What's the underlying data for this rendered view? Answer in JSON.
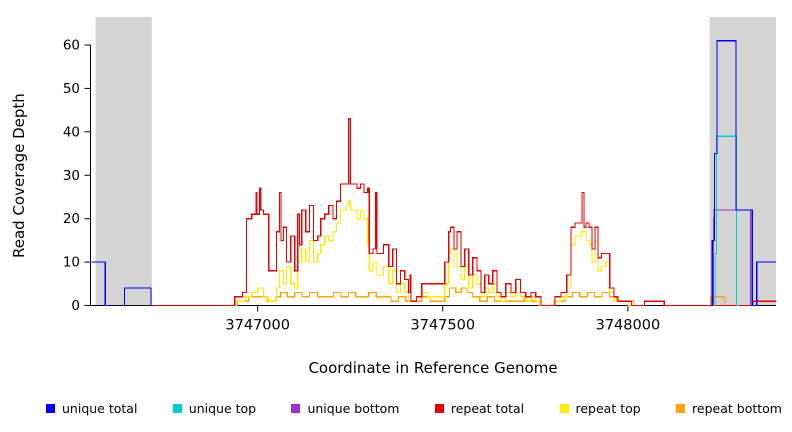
{
  "chart_data": {
    "type": "line",
    "style": "step",
    "title": "",
    "xlabel": "Coordinate in Reference Genome",
    "ylabel": "Read Coverage Depth",
    "xlim": [
      3746551,
      3748400
    ],
    "ylim": [
      0,
      60
    ],
    "xticks": [
      3747000,
      3747500,
      3748000
    ],
    "yticks": [
      0,
      10,
      20,
      30,
      40,
      50,
      60
    ],
    "grid": false,
    "legend_position": "bottom",
    "shaded_regions": [
      {
        "x0": 3746562,
        "x1": 3746714,
        "color": "#d4d4d4"
      },
      {
        "x0": 3748221,
        "x1": 3748400,
        "color": "#d4d4d4"
      }
    ],
    "series": [
      {
        "name": "unique total",
        "color": "#0000ee",
        "segments": [
          [
            [
              3746551,
              10
            ],
            [
              3746588,
              0
            ],
            [
              3746600,
              0
            ]
          ],
          [
            [
              3746636,
              0
            ],
            [
              3746640,
              4
            ],
            [
              3746712,
              0
            ],
            [
              3746718,
              0
            ]
          ],
          [
            [
              3748226,
              0
            ],
            [
              3748228,
              15
            ],
            [
              3748234,
              35
            ],
            [
              3748241,
              61
            ],
            [
              3748292,
              22
            ],
            [
              3748336,
              0
            ],
            [
              3748348,
              10
            ],
            [
              3748400,
              10
            ]
          ]
        ]
      },
      {
        "name": "unique top",
        "color": "#00cdcd",
        "segments": [
          [
            [
              3748233,
              0
            ],
            [
              3748235,
              12
            ],
            [
              3748239,
              39
            ],
            [
              3748293,
              0
            ],
            [
              3748300,
              0
            ]
          ]
        ]
      },
      {
        "name": "unique bottom",
        "color": "#9932cc",
        "segments": [
          [
            [
              3748229,
              0
            ],
            [
              3748231,
              20
            ],
            [
              3748233,
              22
            ],
            [
              3748331,
              0
            ],
            [
              3748338,
              0
            ]
          ]
        ]
      },
      {
        "name": "repeat total",
        "color": "#e60000",
        "segments": [
          [
            [
              3746715,
              0
            ],
            [
              3746938,
              2
            ],
            [
              3746959,
              3
            ],
            [
              3746970,
              20
            ],
            [
              3746984,
              21
            ],
            [
              3746995,
              26
            ],
            [
              3746998,
              21
            ],
            [
              3747005,
              27
            ],
            [
              3747008,
              22
            ],
            [
              3747016,
              21
            ],
            [
              3747030,
              8
            ],
            [
              3747051,
              17
            ],
            [
              3747059,
              26
            ],
            [
              3747063,
              15
            ],
            [
              3747070,
              18
            ],
            [
              3747078,
              10
            ],
            [
              3747089,
              16
            ],
            [
              3747100,
              8
            ],
            [
              3747108,
              21
            ],
            [
              3747113,
              14
            ],
            [
              3747119,
              22
            ],
            [
              3747130,
              17
            ],
            [
              3747140,
              23
            ],
            [
              3747151,
              15
            ],
            [
              3747162,
              16
            ],
            [
              3747170,
              20
            ],
            [
              3747181,
              21
            ],
            [
              3747192,
              23
            ],
            [
              3747203,
              20
            ],
            [
              3747213,
              24
            ],
            [
              3747224,
              28
            ],
            [
              3747246,
              43
            ],
            [
              3747251,
              28
            ],
            [
              3747268,
              27
            ],
            [
              3747278,
              28
            ],
            [
              3747287,
              26
            ],
            [
              3747297,
              27
            ],
            [
              3747301,
              12
            ],
            [
              3747311,
              13
            ],
            [
              3747319,
              26
            ],
            [
              3747322,
              12
            ],
            [
              3747340,
              14
            ],
            [
              3747354,
              9
            ],
            [
              3747365,
              13
            ],
            [
              3747375,
              5
            ],
            [
              3747386,
              8
            ],
            [
              3747397,
              6
            ],
            [
              3747407,
              3
            ],
            [
              3747411,
              7
            ],
            [
              3747414,
              1
            ],
            [
              3747429,
              2
            ],
            [
              3747443,
              5
            ],
            [
              3747505,
              10
            ],
            [
              3747516,
              17
            ],
            [
              3747521,
              18
            ],
            [
              3747530,
              13
            ],
            [
              3747538,
              17
            ],
            [
              3747549,
              9
            ],
            [
              3747559,
              13
            ],
            [
              3747570,
              7
            ],
            [
              3747581,
              11
            ],
            [
              3747592,
              8
            ],
            [
              3747603,
              3
            ],
            [
              3747613,
              7
            ],
            [
              3747624,
              5
            ],
            [
              3747635,
              8
            ],
            [
              3747646,
              3
            ],
            [
              3747657,
              2
            ],
            [
              3747670,
              5
            ],
            [
              3747684,
              3
            ],
            [
              3747697,
              6
            ],
            [
              3747710,
              3
            ],
            [
              3747724,
              2
            ],
            [
              3747738,
              3
            ],
            [
              3747751,
              2
            ],
            [
              3747765,
              0
            ],
            [
              3747803,
              2
            ],
            [
              3747819,
              3
            ],
            [
              3747835,
              7
            ],
            [
              3747846,
              18
            ],
            [
              3747857,
              19
            ],
            [
              3747876,
              26
            ],
            [
              3747881,
              18
            ],
            [
              3747887,
              19
            ],
            [
              3747895,
              18
            ],
            [
              3747903,
              13
            ],
            [
              3747911,
              18
            ],
            [
              3747919,
              11
            ],
            [
              3747929,
              12
            ],
            [
              3747940,
              12
            ],
            [
              3747951,
              4
            ],
            [
              3747962,
              2
            ],
            [
              3747973,
              1
            ],
            [
              3748010,
              0
            ],
            [
              3748045,
              1
            ],
            [
              3748098,
              0
            ],
            [
              3748338,
              1
            ],
            [
              3748400,
              1
            ]
          ]
        ]
      },
      {
        "name": "repeat top",
        "color": "#ffeb00",
        "segments": [
          [
            [
              3746930,
              0
            ],
            [
              3746940,
              1
            ],
            [
              3746965,
              2
            ],
            [
              3746984,
              3
            ],
            [
              3747000,
              4
            ],
            [
              3747016,
              2
            ],
            [
              3747030,
              1
            ],
            [
              3747051,
              4
            ],
            [
              3747059,
              8
            ],
            [
              3747070,
              5
            ],
            [
              3747078,
              9
            ],
            [
              3747089,
              5
            ],
            [
              3747100,
              4
            ],
            [
              3747108,
              10
            ],
            [
              3747119,
              13
            ],
            [
              3747130,
              10
            ],
            [
              3747140,
              15
            ],
            [
              3747151,
              10
            ],
            [
              3747162,
              12
            ],
            [
              3747170,
              14
            ],
            [
              3747181,
              16
            ],
            [
              3747192,
              15
            ],
            [
              3747203,
              17
            ],
            [
              3747213,
              19
            ],
            [
              3747224,
              22
            ],
            [
              3747240,
              23
            ],
            [
              3747246,
              24
            ],
            [
              3747251,
              22
            ],
            [
              3747268,
              20
            ],
            [
              3747278,
              22
            ],
            [
              3747287,
              20
            ],
            [
              3747297,
              14
            ],
            [
              3747301,
              8
            ],
            [
              3747311,
              10
            ],
            [
              3747322,
              7
            ],
            [
              3747340,
              9
            ],
            [
              3747354,
              5
            ],
            [
              3747365,
              8
            ],
            [
              3747375,
              3
            ],
            [
              3747386,
              5
            ],
            [
              3747397,
              3
            ],
            [
              3747407,
              1
            ],
            [
              3747429,
              2
            ],
            [
              3747443,
              3
            ],
            [
              3747460,
              2
            ],
            [
              3747505,
              5
            ],
            [
              3747516,
              12
            ],
            [
              3747521,
              13
            ],
            [
              3747530,
              9
            ],
            [
              3747538,
              12
            ],
            [
              3747549,
              6
            ],
            [
              3747559,
              9
            ],
            [
              3747570,
              4
            ],
            [
              3747581,
              7
            ],
            [
              3747592,
              5
            ],
            [
              3747603,
              2
            ],
            [
              3747613,
              4
            ],
            [
              3747624,
              3
            ],
            [
              3747635,
              5
            ],
            [
              3747646,
              2
            ],
            [
              3747657,
              1
            ],
            [
              3747670,
              3
            ],
            [
              3747684,
              2
            ],
            [
              3747697,
              4
            ],
            [
              3747710,
              2
            ],
            [
              3747724,
              1
            ],
            [
              3747738,
              2
            ],
            [
              3747751,
              1
            ],
            [
              3747765,
              0
            ],
            [
              3747803,
              1
            ],
            [
              3747819,
              2
            ],
            [
              3747835,
              4
            ],
            [
              3747846,
              14
            ],
            [
              3747857,
              16
            ],
            [
              3747876,
              17
            ],
            [
              3747887,
              15
            ],
            [
              3747895,
              14
            ],
            [
              3747903,
              10
            ],
            [
              3747911,
              15
            ],
            [
              3747919,
              8
            ],
            [
              3747929,
              9
            ],
            [
              3747940,
              10
            ],
            [
              3747951,
              3
            ],
            [
              3747962,
              1
            ],
            [
              3747973,
              1
            ],
            [
              3748000,
              0
            ],
            [
              3748010,
              0
            ]
          ]
        ]
      },
      {
        "name": "repeat bottom",
        "color": "#ffa500",
        "segments": [
          [
            [
              3746935,
              0
            ],
            [
              3746945,
              1
            ],
            [
              3746975,
              2
            ],
            [
              3747005,
              2
            ],
            [
              3747025,
              1
            ],
            [
              3747050,
              2
            ],
            [
              3747062,
              3
            ],
            [
              3747080,
              2
            ],
            [
              3747100,
              3
            ],
            [
              3747120,
              2
            ],
            [
              3747140,
              3
            ],
            [
              3747162,
              2
            ],
            [
              3747185,
              2
            ],
            [
              3747205,
              3
            ],
            [
              3747225,
              2
            ],
            [
              3747245,
              3
            ],
            [
              3747265,
              2
            ],
            [
              3747285,
              2
            ],
            [
              3747300,
              3
            ],
            [
              3747320,
              2
            ],
            [
              3747340,
              2
            ],
            [
              3747360,
              1
            ],
            [
              3747380,
              2
            ],
            [
              3747400,
              1
            ],
            [
              3747420,
              1
            ],
            [
              3747443,
              2
            ],
            [
              3747465,
              1
            ],
            [
              3747505,
              2
            ],
            [
              3747518,
              4
            ],
            [
              3747535,
              3
            ],
            [
              3747550,
              4
            ],
            [
              3747565,
              3
            ],
            [
              3747580,
              2
            ],
            [
              3747600,
              1
            ],
            [
              3747620,
              2
            ],
            [
              3747640,
              1
            ],
            [
              3747660,
              1
            ],
            [
              3747700,
              1
            ],
            [
              3747720,
              2
            ],
            [
              3747740,
              1
            ],
            [
              3747760,
              0
            ],
            [
              3747800,
              1
            ],
            [
              3747830,
              2
            ],
            [
              3747850,
              3
            ],
            [
              3747870,
              2
            ],
            [
              3747890,
              3
            ],
            [
              3747910,
              2
            ],
            [
              3747930,
              3
            ],
            [
              3747950,
              2
            ],
            [
              3747970,
              1
            ],
            [
              3748000,
              1
            ],
            [
              3748015,
              0
            ]
          ],
          [
            [
              3748222,
              0
            ],
            [
              3748224,
              2
            ],
            [
              3748262,
              0
            ]
          ]
        ]
      }
    ]
  }
}
